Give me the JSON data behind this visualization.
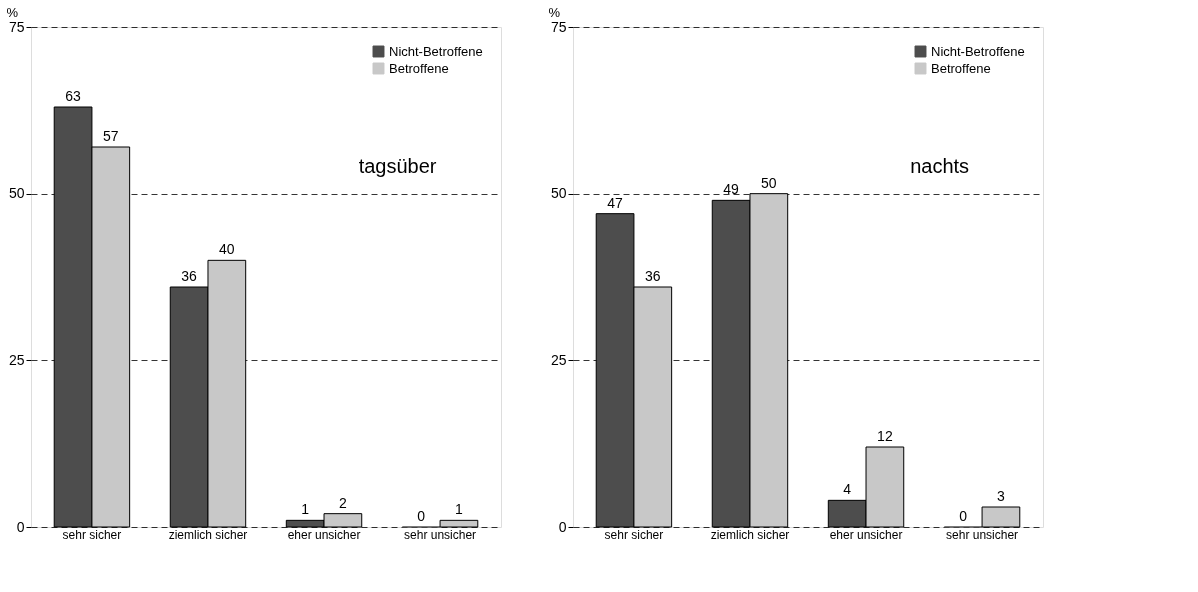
{
  "chart_data": [
    {
      "type": "bar",
      "ylabel": "%",
      "annotations": [
        "tagsüber"
      ],
      "categories": [
        "sehr sicher",
        "ziemlich sicher",
        "eher unsicher",
        "sehr unsicher"
      ],
      "series": [
        {
          "name": "Nicht-Betroffene",
          "color": "#4d4d4d",
          "values": [
            63,
            36,
            1,
            0
          ]
        },
        {
          "name": "Betroffene",
          "color": "#c8c8c8",
          "values": [
            57,
            40,
            2,
            1
          ]
        }
      ],
      "ylim": [
        0,
        75
      ],
      "yticks": [
        0,
        25,
        50,
        75
      ],
      "grid": "y",
      "legend": "top right",
      "data_labels": true
    },
    {
      "type": "bar",
      "ylabel": "%",
      "annotations": [
        "nachts"
      ],
      "categories": [
        "sehr sicher",
        "ziemlich sicher",
        "eher unsicher",
        "sehr unsicher"
      ],
      "series": [
        {
          "name": "Nicht-Betroffene",
          "color": "#4d4d4d",
          "values": [
            47,
            49,
            4,
            0
          ]
        },
        {
          "name": "Betroffene",
          "color": "#c8c8c8",
          "values": [
            36,
            50,
            12,
            3
          ]
        }
      ],
      "ylim": [
        0,
        75
      ],
      "yticks": [
        0,
        25,
        50,
        75
      ],
      "grid": "y",
      "legend": "top right",
      "data_labels": true
    }
  ]
}
